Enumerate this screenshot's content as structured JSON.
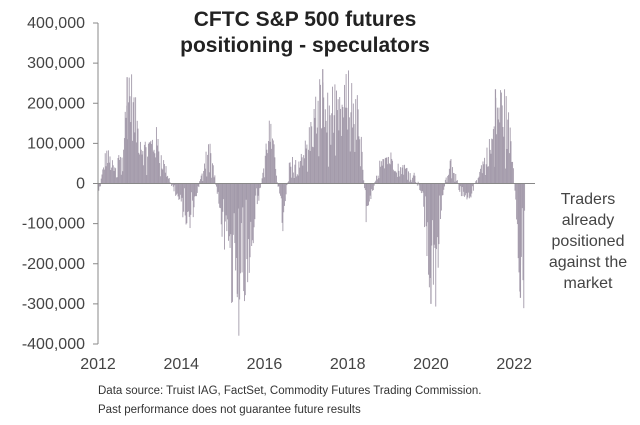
{
  "chart_data": {
    "type": "bar",
    "title_lines": [
      "CFTC S&P 500 futures",
      "positioning - speculators"
    ],
    "ylabel": "",
    "xlabel": "",
    "ylim": [
      -400000,
      400000
    ],
    "xlim": [
      2012,
      2022.5
    ],
    "y_ticks": [
      400000,
      300000,
      200000,
      100000,
      0,
      -100000,
      -200000,
      -300000,
      -400000
    ],
    "y_tick_labels": [
      "400,000",
      "300,000",
      "200,000",
      "100,000",
      "0",
      "-100,000",
      "-200,000",
      "-300,000",
      "-400,000"
    ],
    "x_ticks": [
      2012,
      2014,
      2016,
      2018,
      2020,
      2022
    ],
    "x_tick_labels": [
      "2012",
      "2014",
      "2016",
      "2018",
      "2020",
      "2022"
    ],
    "bar_color": "#a39aaa",
    "series_anchors": {
      "x": [
        2012.0,
        2012.2,
        2012.4,
        2012.6,
        2012.75,
        2012.9,
        2013.1,
        2013.4,
        2013.6,
        2013.8,
        2014.0,
        2014.2,
        2014.35,
        2014.5,
        2014.65,
        2014.8,
        2014.95,
        2015.1,
        2015.25,
        2015.4,
        2015.55,
        2015.7,
        2015.85,
        2016.0,
        2016.1,
        2016.25,
        2016.45,
        2016.6,
        2016.8,
        2017.0,
        2017.2,
        2017.35,
        2017.5,
        2017.65,
        2017.8,
        2018.0,
        2018.1,
        2018.3,
        2018.45,
        2018.6,
        2018.8,
        2019.0,
        2019.3,
        2019.6,
        2019.8,
        2019.95,
        2020.1,
        2020.3,
        2020.5,
        2020.7,
        2020.9,
        2021.1,
        2021.3,
        2021.45,
        2021.6,
        2021.75,
        2021.85,
        2021.95,
        2022.05,
        2022.15,
        2022.25
      ],
      "y": [
        -30000,
        70000,
        30000,
        90000,
        230000,
        150000,
        80000,
        100000,
        40000,
        -10000,
        -50000,
        -100000,
        -30000,
        20000,
        100000,
        20000,
        -80000,
        -150000,
        -230000,
        -270000,
        -200000,
        -120000,
        -40000,
        50000,
        130000,
        60000,
        -100000,
        40000,
        60000,
        80000,
        150000,
        200000,
        160000,
        180000,
        150000,
        200000,
        230000,
        120000,
        -80000,
        -30000,
        70000,
        60000,
        40000,
        20000,
        -30000,
        -200000,
        -260000,
        -10000,
        60000,
        -30000,
        -40000,
        10000,
        60000,
        90000,
        180000,
        180000,
        140000,
        70000,
        -50000,
        -220000,
        -270000
      ]
    },
    "peak_markers": [
      {
        "x": 2012.7,
        "y": 265000
      },
      {
        "x": 2015.35,
        "y": -275000
      },
      {
        "x": 2017.4,
        "y": 285000
      },
      {
        "x": 2020.0,
        "y": -300000
      },
      {
        "x": 2021.55,
        "y": 235000
      },
      {
        "x": 2022.15,
        "y": -285000
      }
    ],
    "annotation_lines": [
      "Traders",
      "already",
      "positioned",
      "against the",
      "market"
    ]
  },
  "footer": {
    "source_line": "Data source: Truist IAG, FactSet, Commodity Futures Trading Commission.",
    "disclaimer_line": "Past performance does not guarantee future results"
  }
}
